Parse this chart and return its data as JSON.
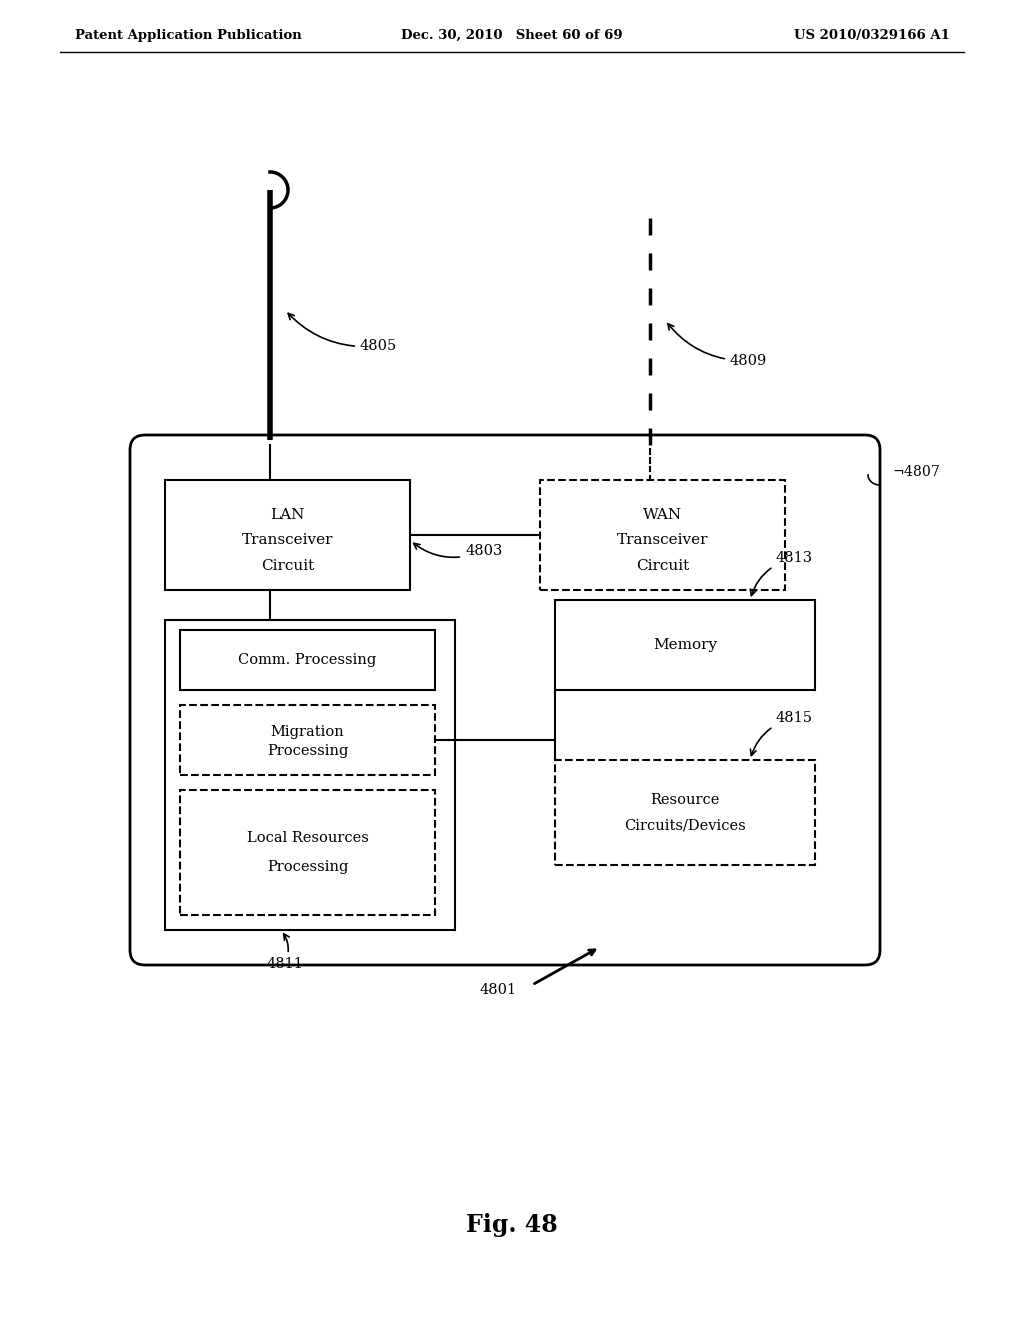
{
  "header_left": "Patent Application Publication",
  "header_mid": "Dec. 30, 2010 Sheet 60 of 69",
  "header_right": "US 2010/0329166 A1",
  "fig_label": "Fig. 48",
  "bg_color": "#ffffff",
  "text_color": "#000000",
  "labels": {
    "4801": "4801",
    "4803": "4803",
    "4805": "4805",
    "4807": "4807",
    "4809": "4809",
    "4811": "4811",
    "4813": "4813",
    "4815": "4815"
  }
}
